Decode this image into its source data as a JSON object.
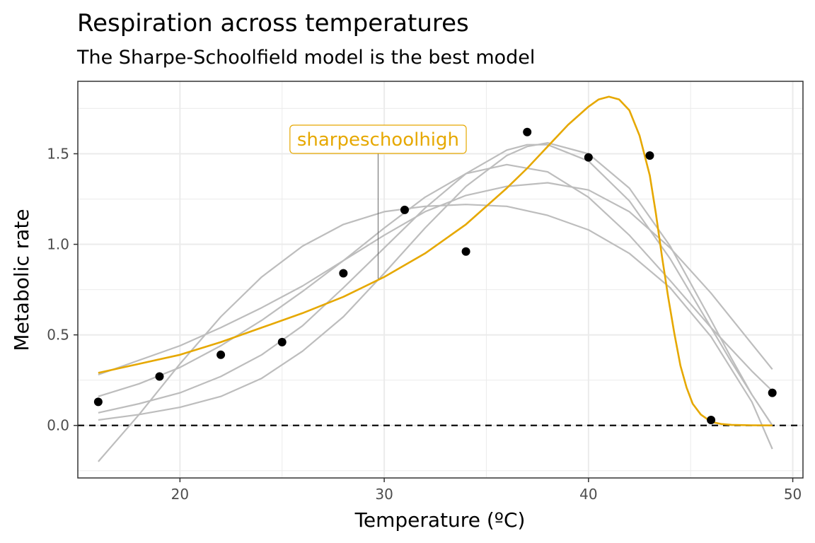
{
  "title": "Respiration across temperatures",
  "subtitle": "The Sharpe-Schoolfield model is the best model",
  "colors": {
    "highlight": "#E6A800",
    "other_models": "#bdbdbd",
    "points": "#000000",
    "grid": "#ebebeb",
    "panel_border": "#333333"
  },
  "chart_data": {
    "type": "scatter",
    "xlabel": "Temperature (ºC)",
    "ylabel": "Metabolic rate",
    "xlim": [
      15,
      50.5
    ],
    "ylim": [
      -0.29,
      1.9
    ],
    "x_ticks": [
      20,
      30,
      40,
      50
    ],
    "x_tick_labels": [
      "20",
      "30",
      "40",
      "50"
    ],
    "y_ticks": [
      0,
      0.5,
      1.0,
      1.5
    ],
    "y_tick_labels": [
      "0.0",
      "0.5",
      "1.0",
      "1.5"
    ],
    "grid": true,
    "reference_line": {
      "y": 0,
      "style": "dashed"
    },
    "annotation": {
      "text": "sharpeschoolhigh",
      "x": 29.7,
      "y": 1.58,
      "pointer_to_y": 0.81
    },
    "points": {
      "x": [
        16,
        19,
        22,
        25,
        28,
        31,
        34,
        37,
        40,
        43,
        46,
        49
      ],
      "y": [
        0.13,
        0.27,
        0.39,
        0.46,
        0.84,
        1.19,
        0.96,
        1.62,
        1.48,
        1.49,
        0.03,
        0.18
      ]
    },
    "series": [
      {
        "name": "sharpeschoolhigh",
        "highlight": true,
        "x": [
          16,
          18,
          20,
          22,
          24,
          26,
          28,
          30,
          32,
          34,
          36,
          37,
          38,
          39,
          40,
          40.5,
          41,
          41.5,
          42,
          42.5,
          43,
          43.3,
          43.6,
          43.9,
          44.2,
          44.5,
          44.8,
          45.1,
          45.5,
          46,
          46.5,
          47,
          48,
          49
        ],
        "y": [
          0.29,
          0.34,
          0.39,
          0.46,
          0.54,
          0.62,
          0.71,
          0.82,
          0.95,
          1.11,
          1.31,
          1.42,
          1.54,
          1.66,
          1.76,
          1.8,
          1.815,
          1.8,
          1.74,
          1.6,
          1.38,
          1.17,
          0.93,
          0.71,
          0.51,
          0.33,
          0.21,
          0.12,
          0.06,
          0.02,
          0.008,
          0.003,
          0.001,
          0.0
        ]
      },
      {
        "x": [
          16,
          18,
          20,
          22,
          24,
          26,
          28,
          30,
          32,
          34,
          36,
          38,
          40,
          42,
          44,
          46,
          48,
          49
        ],
        "y": [
          0.16,
          0.23,
          0.32,
          0.44,
          0.58,
          0.74,
          0.91,
          1.09,
          1.26,
          1.39,
          1.44,
          1.4,
          1.26,
          1.05,
          0.8,
          0.54,
          0.3,
          0.19
        ]
      },
      {
        "x": [
          16,
          18,
          20,
          22,
          24,
          26,
          28,
          30,
          32,
          34,
          36,
          37,
          38,
          40,
          42,
          44,
          46,
          47,
          48,
          49
        ],
        "y": [
          0.07,
          0.12,
          0.18,
          0.27,
          0.39,
          0.55,
          0.76,
          0.98,
          1.2,
          1.39,
          1.52,
          1.55,
          1.55,
          1.46,
          1.24,
          0.92,
          0.54,
          0.35,
          0.17,
          0.0
        ]
      },
      {
        "x": [
          16,
          18,
          20,
          22,
          24,
          26,
          28,
          30,
          32,
          34,
          36,
          37,
          38,
          40,
          42,
          44,
          46,
          47,
          48,
          49
        ],
        "y": [
          0.03,
          0.06,
          0.1,
          0.16,
          0.26,
          0.41,
          0.6,
          0.84,
          1.09,
          1.32,
          1.49,
          1.54,
          1.56,
          1.5,
          1.31,
          0.99,
          0.58,
          0.37,
          0.17,
          0.0
        ]
      },
      {
        "x": [
          16,
          18,
          20,
          22,
          24,
          26,
          28,
          30,
          32,
          34,
          36,
          38,
          40,
          42,
          44,
          46,
          48,
          49
        ],
        "y": [
          0.28,
          0.36,
          0.44,
          0.54,
          0.65,
          0.77,
          0.91,
          1.05,
          1.18,
          1.27,
          1.32,
          1.34,
          1.3,
          1.18,
          0.98,
          0.73,
          0.45,
          0.31
        ]
      },
      {
        "x": [
          16,
          18,
          20,
          22,
          24,
          26,
          28,
          30,
          32,
          34,
          36,
          38,
          40,
          42,
          44,
          46,
          48,
          49
        ],
        "y": [
          -0.2,
          0.06,
          0.34,
          0.6,
          0.82,
          0.99,
          1.11,
          1.18,
          1.21,
          1.22,
          1.21,
          1.16,
          1.08,
          0.95,
          0.76,
          0.49,
          0.13,
          -0.13
        ]
      }
    ]
  }
}
